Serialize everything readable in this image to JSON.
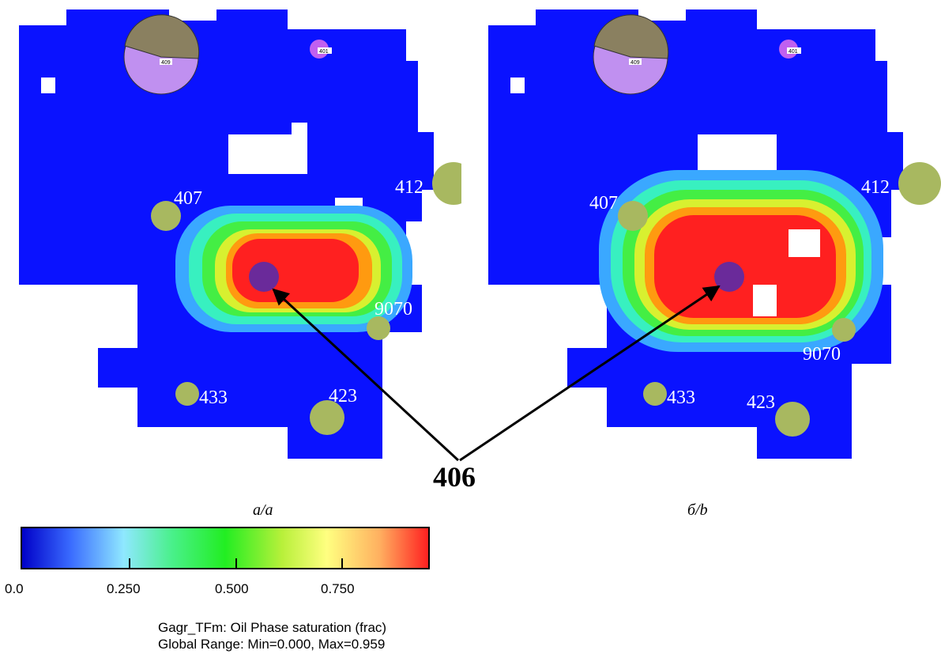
{
  "center_label": "406",
  "panels": [
    {
      "caption": "а/a",
      "labels": {
        "w407": "407",
        "w412": "412",
        "w9070": "9070",
        "w433": "433",
        "w423": "423",
        "p409": "409",
        "p401": "401"
      }
    },
    {
      "caption": "б/b",
      "labels": {
        "w407": "407",
        "w412": "412",
        "w9070": "9070",
        "w433": "433",
        "w423": "423",
        "p409": "409",
        "p401": "401"
      }
    }
  ],
  "colorbar": {
    "ticks": [
      "0.0",
      "0.250",
      "0.500",
      "0.750"
    ],
    "colors": [
      "#0000c8",
      "#8fe8ff",
      "#22ee22",
      "#ffff80",
      "#ff2020"
    ]
  },
  "legend": {
    "line1": "Gagr_TFm: Oil Phase saturation (frac)",
    "line2": "Global Range: Min=0.000, Max=0.959"
  },
  "colors": {
    "field": "#0a12ff",
    "well": "#a8b860",
    "injector": "#6a2a9a",
    "pie_purple": "#c090f0",
    "pie_olive": "#8a8060"
  }
}
